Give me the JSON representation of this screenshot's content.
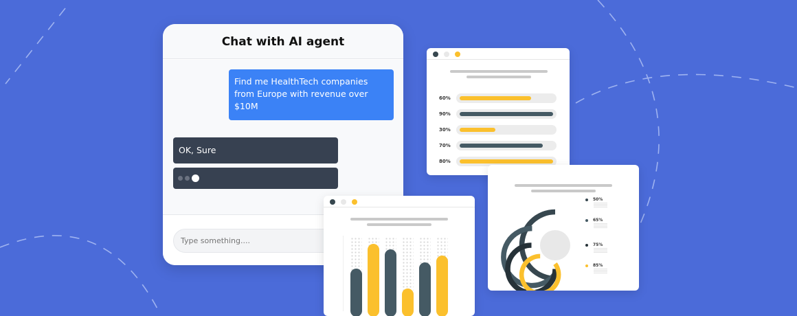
{
  "colors": {
    "background": "#4b6bd9",
    "user_bubble": "#3b82f6",
    "agent_bubble": "#374151",
    "yellow": "#fbc02d",
    "slate": "#455a64",
    "dark": "#263238"
  },
  "chat": {
    "title": "Chat with AI agent",
    "messages": [
      {
        "role": "user",
        "text": "Find me HealthTech companies from Europe with revenue over $10M"
      },
      {
        "role": "agent",
        "text": "OK, Sure"
      },
      {
        "role": "agent",
        "typing": true,
        "icon": "typing-dots-icon"
      }
    ],
    "input": {
      "placeholder": "Type something....",
      "value": ""
    }
  },
  "progress_window": {
    "bars": [
      {
        "label": "60%",
        "value": 60,
        "color": "#fbc02d"
      },
      {
        "label": "90%",
        "value": 90,
        "color": "#455a64"
      },
      {
        "label": "30%",
        "value": 30,
        "color": "#fbc02d"
      },
      {
        "label": "70%",
        "value": 70,
        "color": "#455a64"
      },
      {
        "label": "80%",
        "value": 80,
        "color": "#fbc02d"
      }
    ]
  },
  "donut_window": {
    "rings": [
      {
        "label": "50%",
        "value": 50,
        "color": "#37474f"
      },
      {
        "label": "65%",
        "value": 65,
        "color": "#455a64"
      },
      {
        "label": "75%",
        "value": 75,
        "color": "#263238"
      },
      {
        "label": "85%",
        "value": 85,
        "color": "#fbc02d"
      }
    ]
  },
  "bar_window": {
    "bars": [
      {
        "value": 57,
        "color": "#455a64"
      },
      {
        "value": 91,
        "color": "#fbc02d"
      },
      {
        "value": 83,
        "color": "#455a64"
      },
      {
        "value": 29,
        "color": "#fbc02d"
      },
      {
        "value": 65,
        "color": "#455a64"
      },
      {
        "value": 75,
        "color": "#fbc02d"
      }
    ]
  }
}
